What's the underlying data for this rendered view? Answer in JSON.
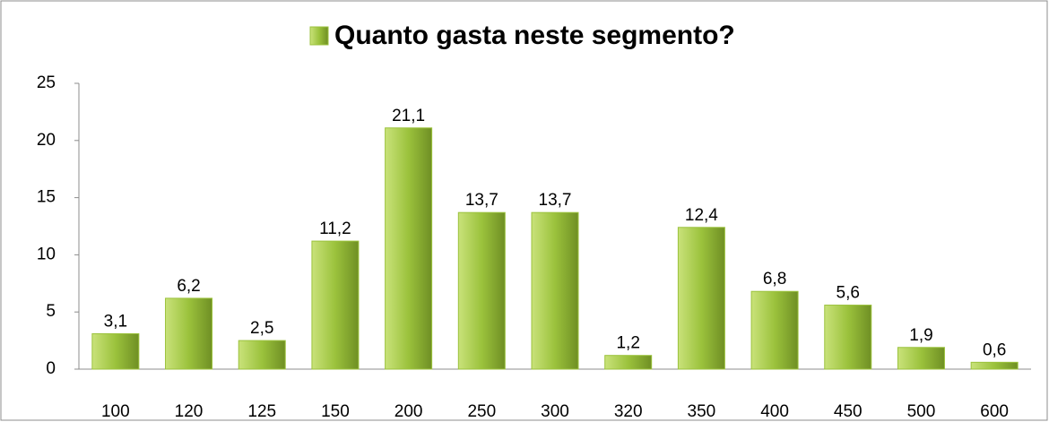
{
  "chart_data": {
    "type": "bar",
    "categories": [
      "100",
      "120",
      "125",
      "150",
      "200",
      "250",
      "300",
      "320",
      "350",
      "400",
      "450",
      "500",
      "600"
    ],
    "series": [
      {
        "name": "Quanto gasta neste segmento?",
        "color": "#9bc23c",
        "values": [
          3.1,
          6.2,
          2.5,
          11.2,
          21.1,
          13.7,
          13.7,
          1.2,
          12.4,
          6.8,
          5.6,
          1.9,
          0.6
        ],
        "value_labels": [
          "3,1",
          "6,2",
          "2,5",
          "11,2",
          "21,1",
          "13,7",
          "13,7",
          "1,2",
          "12,4",
          "6,8",
          "5,6",
          "1,9",
          "0,6"
        ]
      }
    ],
    "legend": "top",
    "ylim": [
      0,
      25
    ],
    "yticks": [
      0,
      5,
      10,
      15,
      20,
      25
    ],
    "grid": false
  }
}
